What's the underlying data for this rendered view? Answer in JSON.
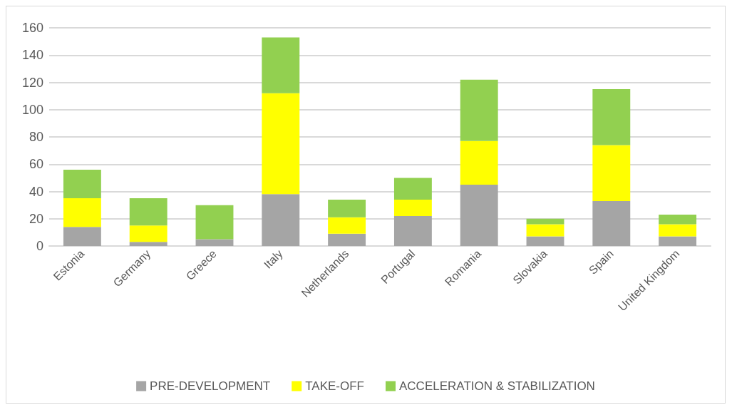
{
  "chart_data": {
    "type": "bar",
    "stacked": true,
    "categories": [
      "Estonia",
      "Germany",
      "Greece",
      "Italy",
      "Netherlands",
      "Portugal",
      "Romania",
      "Slovakia",
      "Spain",
      "United Kingdom"
    ],
    "series": [
      {
        "name": "PRE-DEVELOPMENT",
        "color": "#a5a5a5",
        "values": [
          14,
          3,
          5,
          38,
          9,
          22,
          45,
          7,
          33,
          7
        ]
      },
      {
        "name": "TAKE-OFF",
        "color": "#ffff00",
        "values": [
          21,
          12,
          0,
          74,
          12,
          12,
          32,
          9,
          41,
          9
        ]
      },
      {
        "name": "ACCELERATION & STABILIZATION",
        "color": "#92d050",
        "values": [
          21,
          20,
          25,
          41,
          13,
          16,
          45,
          4,
          41,
          7
        ]
      }
    ],
    "ylim": [
      0,
      160
    ],
    "yticks": [
      0,
      20,
      40,
      60,
      80,
      100,
      120,
      140,
      160
    ],
    "grid": "y",
    "legend": "bottom"
  }
}
